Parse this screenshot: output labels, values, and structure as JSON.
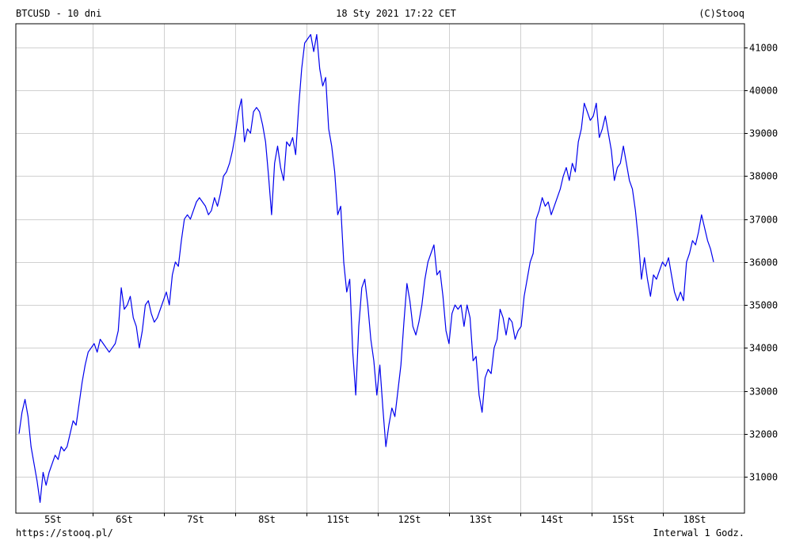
{
  "header": {
    "symbol": "BTCUSD - 10 dni",
    "timestamp": "18 Sty 2021 17:22 CET",
    "copyright": "(C)Stooq"
  },
  "footer": {
    "url": "https://stooq.pl/",
    "interval": "Interwal 1 Godz."
  },
  "chart_data": {
    "type": "line",
    "title": "",
    "xlabel": "",
    "ylabel": "",
    "x_tick_labels": [
      "5St",
      "6St",
      "7St",
      "8St",
      "11St",
      "12St",
      "13St",
      "14St",
      "15St",
      "18St"
    ],
    "y_ticks": [
      31000,
      32000,
      33000,
      34000,
      35000,
      36000,
      37000,
      38000,
      39000,
      40000,
      41000
    ],
    "ylim": [
      30150,
      41550
    ],
    "grid": true,
    "series_color": "#0000ee",
    "series": [
      {
        "values": [
          32000,
          32500,
          32800,
          32400,
          31700,
          31300,
          30900,
          30400,
          31100,
          30800,
          31100,
          31300,
          31500,
          31400,
          31700,
          31600,
          31700,
          32000,
          32300,
          32200,
          32700,
          33200,
          33600,
          33900,
          34000,
          34100,
          33900,
          34200,
          34100,
          34000,
          33900,
          34000,
          34100,
          34400,
          35400,
          34900,
          35000,
          35200,
          34700,
          34500,
          34000,
          34400,
          35000,
          35100,
          34800,
          34600,
          34700,
          34900,
          35100,
          35300,
          35000,
          35700,
          36000,
          35900,
          36500,
          37000,
          37100,
          37000,
          37200,
          37400,
          37500,
          37400,
          37300,
          37100,
          37200,
          37500,
          37300,
          37600,
          38000,
          38100,
          38300,
          38600,
          39000,
          39500,
          39800,
          38800,
          39100,
          39000,
          39500,
          39600,
          39500,
          39200,
          38800,
          38000,
          37100,
          38300,
          38700,
          38200,
          37900,
          38800,
          38700,
          38900,
          38500,
          39600,
          40500,
          41100,
          41200,
          41300,
          40900,
          41300,
          40500,
          40100,
          40300,
          39100,
          38700,
          38100,
          37100,
          37300,
          36000,
          35300,
          35600,
          33900,
          32900,
          34500,
          35400,
          35600,
          35000,
          34200,
          33700,
          32900,
          33600,
          32600,
          31700,
          32200,
          32600,
          32400,
          33000,
          33600,
          34600,
          35500,
          35100,
          34500,
          34300,
          34600,
          35000,
          35600,
          36000,
          36200,
          36400,
          35700,
          35800,
          35200,
          34400,
          34100,
          34800,
          35000,
          34900,
          35000,
          34500,
          35000,
          34700,
          33700,
          33800,
          32900,
          32500,
          33300,
          33500,
          33400,
          34000,
          34200,
          34900,
          34700,
          34300,
          34700,
          34600,
          34200,
          34400,
          34500,
          35200,
          35600,
          36000,
          36200,
          37000,
          37200,
          37500,
          37300,
          37400,
          37100,
          37300,
          37500,
          37700,
          38000,
          38200,
          37900,
          38300,
          38100,
          38800,
          39100,
          39700,
          39500,
          39300,
          39400,
          39700,
          38900,
          39100,
          39400,
          39000,
          38600,
          37900,
          38200,
          38300,
          38700,
          38300,
          37900,
          37700,
          37200,
          36500,
          35600,
          36100,
          35600,
          35200,
          35700,
          35600,
          35800,
          36000,
          35900,
          36100,
          35700,
          35300,
          35100,
          35300,
          35100,
          36000,
          36200,
          36500,
          36400,
          36700,
          37100,
          36800,
          36500,
          36300,
          36000
        ]
      }
    ]
  }
}
